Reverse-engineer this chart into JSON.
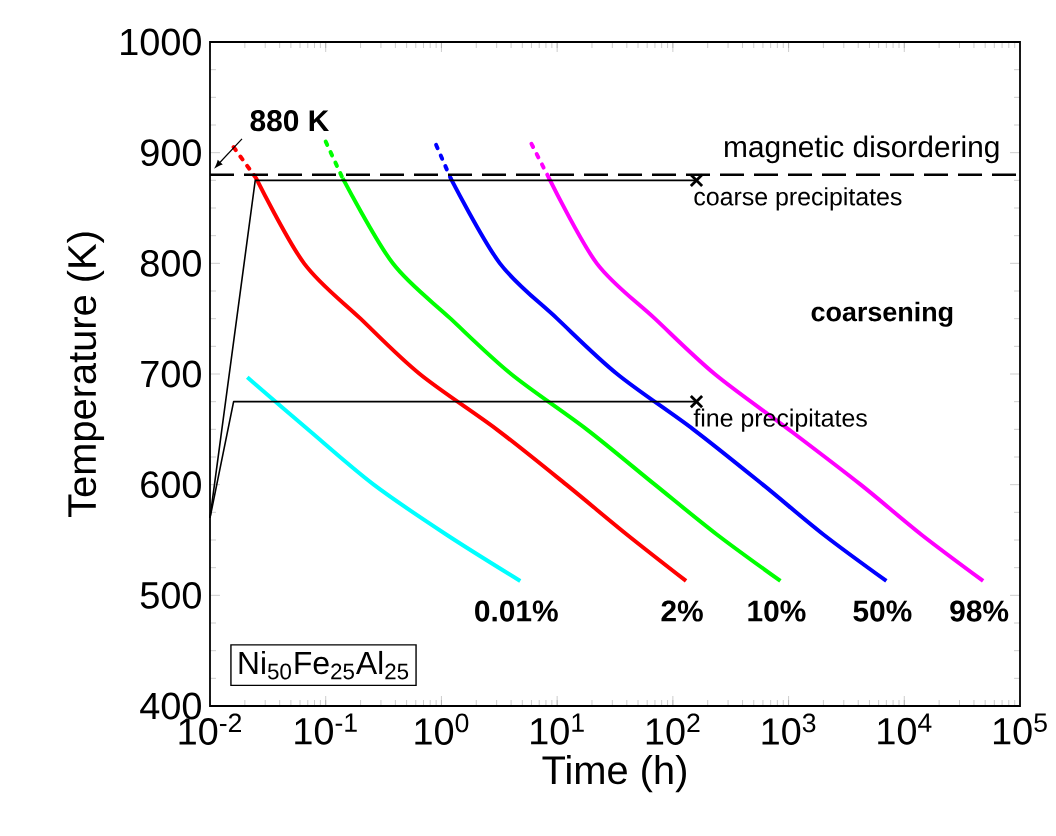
{
  "chart_data": {
    "type": "line",
    "xlabel": "Time (h)",
    "ylabel": "Temperature (K)",
    "log": "x",
    "xlim": [
      0.01,
      100000
    ],
    "ylim": [
      400,
      1000
    ],
    "xticks": [
      {
        "value": 0.01,
        "label": "10$^{-2}$"
      },
      {
        "value": 0.1,
        "label": "10$^{-1}$"
      },
      {
        "value": 1,
        "label": "10$^{0}$"
      },
      {
        "value": 10,
        "label": "10$^{1}$"
      },
      {
        "value": 100,
        "label": "10$^{2}$"
      },
      {
        "value": 1000,
        "label": "10$^{3}$"
      },
      {
        "value": 10000,
        "label": "10$^{4}$"
      },
      {
        "value": 100000,
        "label": "10$^{5}$"
      }
    ],
    "yticks": [
      400,
      500,
      600,
      700,
      800,
      900,
      1000
    ],
    "series": [
      {
        "name": "0.01%",
        "color": "#00ffff",
        "x": [
          0.021,
          0.07,
          0.26,
          1.1,
          4.8
        ],
        "values": [
          697,
          650,
          600,
          555,
          513
        ]
      },
      {
        "name": "2%",
        "color": "#ff0000",
        "x": [
          0.025,
          0.065,
          0.2,
          0.65,
          3,
          12,
          40,
          130
        ],
        "values": [
          877,
          800,
          750,
          700,
          650,
          600,
          555,
          513
        ]
      },
      {
        "name": "10%",
        "color": "#00ff00",
        "x": [
          0.14,
          0.38,
          1.2,
          4,
          18,
          70,
          240,
          850
        ],
        "values": [
          877,
          800,
          750,
          700,
          650,
          600,
          555,
          513
        ]
      },
      {
        "name": "50%",
        "color": "#0000ff",
        "x": [
          1.2,
          3.2,
          10,
          33,
          150,
          600,
          2000,
          7000
        ],
        "values": [
          877,
          800,
          750,
          700,
          650,
          600,
          555,
          513
        ]
      },
      {
        "name": "98%",
        "color": "#ff00ff",
        "x": [
          8.5,
          22,
          70,
          230,
          1000,
          4200,
          14000,
          48000
        ],
        "values": [
          877,
          800,
          750,
          700,
          650,
          600,
          555,
          513
        ]
      },
      {
        "color": "#ff0000",
        "line_style": "dotted",
        "x": [
          0.016,
          0.025
        ],
        "values": [
          905,
          877
        ]
      },
      {
        "color": "#00ff00",
        "line_style": "dotted",
        "x": [
          0.1,
          0.14
        ],
        "values": [
          910,
          877
        ]
      },
      {
        "color": "#0000ff",
        "line_style": "dotted",
        "x": [
          0.9,
          1.2
        ],
        "values": [
          907,
          877
        ]
      },
      {
        "color": "#ff00ff",
        "line_style": "dotted",
        "x": [
          6,
          8.5
        ],
        "values": [
          908,
          877
        ]
      },
      {
        "color": "#000000",
        "line_style": "solid",
        "x": [
          0.01,
          0.0246,
          160
        ],
        "values": [
          570,
          875,
          875
        ]
      },
      {
        "color": "#000000",
        "line_style": "solid",
        "x": [
          0.01,
          0.016,
          160
        ],
        "values": [
          570,
          675,
          675
        ]
      },
      {
        "type": "scatter",
        "color": "#000000",
        "marker": "cross",
        "x": [
          160,
          160
        ],
        "values": [
          875,
          675
        ]
      }
    ],
    "ref_lines": [
      {
        "axis": "y",
        "value": 880,
        "label": "magnetic disordering",
        "line_style": "dashed",
        "color": "#000000"
      }
    ],
    "annotations": [
      "880 K",
      "coarse precipitates",
      "fine precipitates",
      "coarsening",
      "Ni$_{50}$Fe$_{25}$Al$_{25}$"
    ]
  }
}
